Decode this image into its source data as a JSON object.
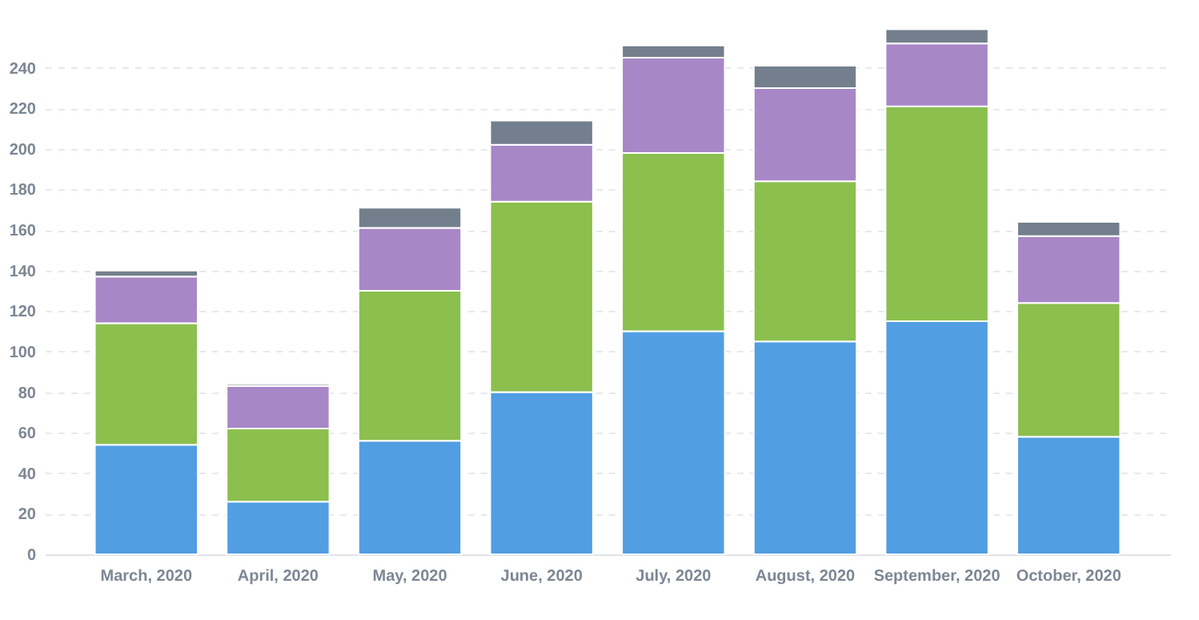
{
  "chart_data": {
    "type": "bar",
    "stacked": true,
    "categories": [
      "March, 2020",
      "April, 2020",
      "May, 2020",
      "June, 2020",
      "July, 2020",
      "August, 2020",
      "September, 2020",
      "October, 2020"
    ],
    "series": [
      {
        "color": "#519ee3",
        "values": [
          54,
          26,
          56,
          80,
          110,
          105,
          115,
          58
        ]
      },
      {
        "color": "#8bbf4e",
        "values": [
          60,
          36,
          74,
          94,
          88,
          79,
          106,
          66
        ]
      },
      {
        "color": "#a887c6",
        "values": [
          23,
          21,
          31,
          28,
          47,
          46,
          31,
          33
        ]
      },
      {
        "color": "#737f8c",
        "values": [
          3,
          1,
          10,
          12,
          6,
          11,
          7,
          7
        ]
      }
    ],
    "ylim": [
      0,
      260
    ],
    "yticks": [
      0,
      20,
      40,
      60,
      80,
      100,
      120,
      140,
      160,
      180,
      200,
      220,
      240
    ],
    "grid": "y",
    "legend": false
  }
}
